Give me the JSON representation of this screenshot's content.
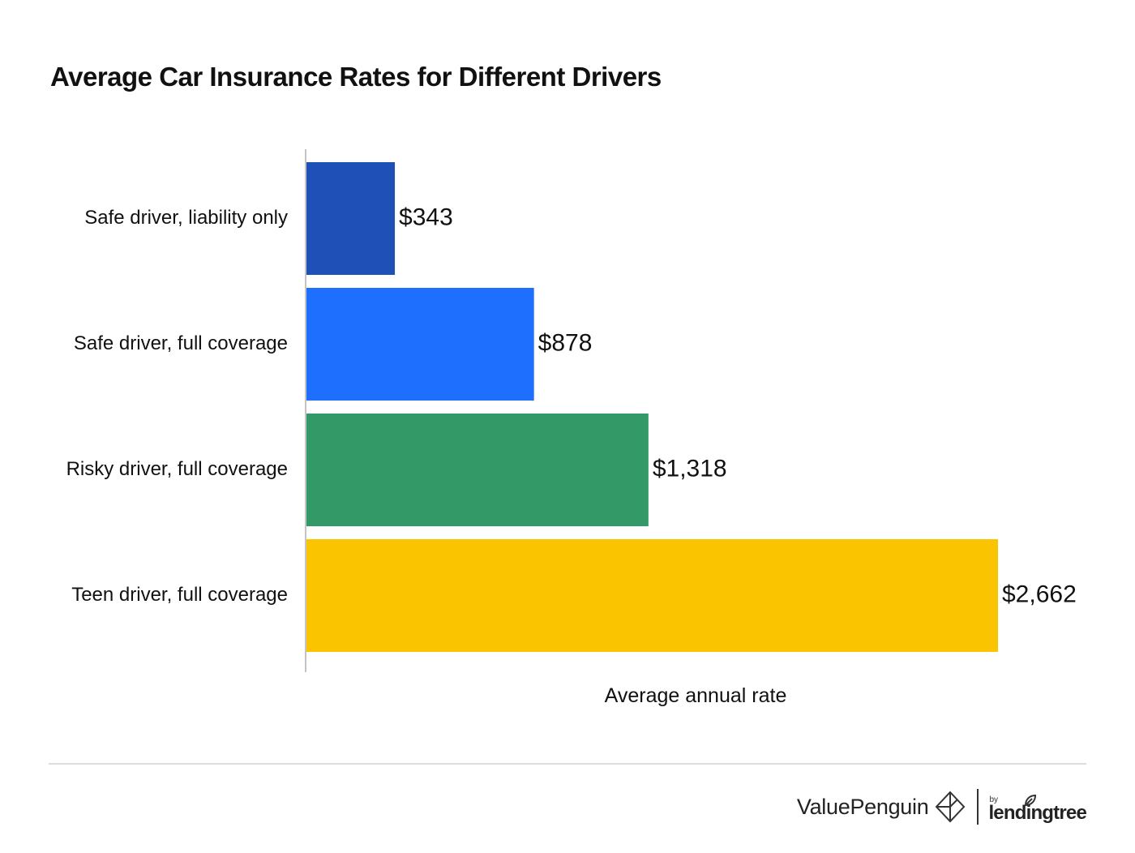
{
  "chart_data": {
    "type": "bar",
    "orientation": "horizontal",
    "title": "Average Car Insurance Rates for Different Drivers",
    "xlabel": "Average annual rate",
    "ylabel": "",
    "categories": [
      "Safe driver, liability only",
      "Safe driver, full coverage",
      "Risky driver, full coverage",
      "Teen driver, full coverage"
    ],
    "values": [
      343,
      878,
      1318,
      2662
    ],
    "value_labels": [
      "$343",
      "$878",
      "$1,318",
      "$2,662"
    ],
    "bar_colors": [
      "#1e50b8",
      "#1f6fff",
      "#339966",
      "#fac500"
    ],
    "xlim": [
      0,
      2662
    ],
    "grid": false,
    "legend": "none"
  },
  "footer": {
    "brand_name": "ValuePenguin",
    "brand_by": "by",
    "brand_partner": "lendingtree"
  },
  "icons": {
    "brand_mark": "valuepenguin-diamond-icon",
    "partner_mark": "leaf-icon"
  }
}
